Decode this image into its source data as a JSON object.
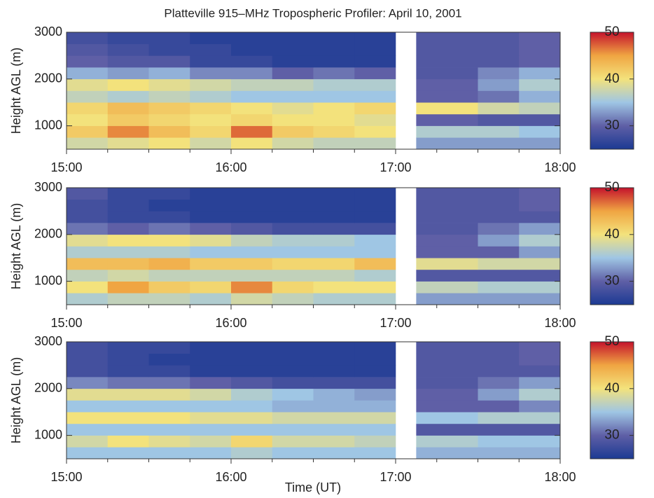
{
  "chart_data": [
    {
      "type": "heatmap",
      "title": "Platteville 915–MHz Tropospheric Profiler:  April 10, 2001",
      "ylabel": "Height AGL (m)",
      "x": [
        15,
        15.25,
        15.5,
        15.75,
        16,
        16.25,
        16.5,
        16.75,
        17,
        17.125,
        17.5,
        17.75,
        18
      ],
      "y": [
        500,
        750,
        1000,
        1250,
        1500,
        1750,
        2000,
        2250,
        2500,
        2750,
        3000
      ],
      "z": [
        [
          38,
          39,
          40,
          38,
          40,
          38,
          37,
          37,
          null,
          33,
          33,
          33
        ],
        [
          42,
          46,
          43,
          41,
          47,
          42,
          41,
          40,
          null,
          36,
          36,
          35
        ],
        [
          40,
          42,
          41,
          40,
          41,
          40,
          40,
          39,
          null,
          30,
          29,
          29
        ],
        [
          41,
          43,
          42,
          41,
          40,
          39,
          40,
          41,
          null,
          40,
          38,
          37
        ],
        [
          37,
          36,
          37,
          36,
          35,
          35,
          35,
          35,
          null,
          30,
          31,
          34
        ],
        [
          39,
          40,
          39,
          38,
          37,
          37,
          36,
          36,
          null,
          30,
          33,
          36
        ],
        [
          34,
          33,
          34,
          32,
          32,
          30,
          31,
          30,
          null,
          29,
          32,
          34
        ],
        [
          30,
          29,
          29,
          27,
          27,
          26,
          26,
          26,
          null,
          29,
          29,
          30
        ],
        [
          29,
          28,
          27,
          27,
          26,
          26,
          26,
          26,
          null,
          29,
          29,
          30
        ],
        [
          28,
          27,
          27,
          26,
          26,
          26,
          26,
          26,
          null,
          29,
          29,
          30
        ]
      ],
      "xlim": [
        15,
        18
      ],
      "ylim": [
        500,
        3000
      ],
      "xticks": [
        {
          "value": 15,
          "label": "15:00"
        },
        {
          "value": 16,
          "label": "16:00"
        },
        {
          "value": 17,
          "label": "17:00"
        },
        {
          "value": 18,
          "label": "18:00"
        }
      ],
      "xminorticks": [
        15.25,
        15.5,
        15.75,
        16.25,
        16.5,
        16.75,
        17.25,
        17.5,
        17.75
      ],
      "yticks": [
        1000,
        2000,
        3000
      ],
      "clim": [
        25,
        50
      ],
      "cticks": [
        30,
        40,
        50
      ],
      "colors": [
        "#1c3a93",
        "#5f5fa6",
        "#9fc6e4",
        "#f3e27c",
        "#f0a542",
        "#c4122c"
      ]
    },
    {
      "type": "heatmap",
      "ylabel": "Height AGL (m)",
      "x": [
        15,
        15.25,
        15.5,
        15.75,
        16,
        16.25,
        16.5,
        16.75,
        17,
        17.125,
        17.5,
        17.75,
        18
      ],
      "y": [
        500,
        750,
        1000,
        1250,
        1500,
        1750,
        2000,
        2250,
        2500,
        2750,
        3000
      ],
      "z": [
        [
          36,
          37,
          37,
          36,
          38,
          37,
          36,
          36,
          null,
          33,
          33,
          33
        ],
        [
          40,
          45,
          42,
          41,
          46,
          41,
          40,
          40,
          null,
          37,
          36,
          36
        ],
        [
          37,
          38,
          37,
          37,
          37,
          37,
          37,
          36,
          null,
          29,
          29,
          29
        ],
        [
          43,
          43,
          44,
          42,
          42,
          41,
          41,
          43,
          null,
          39,
          38,
          38
        ],
        [
          36,
          36,
          36,
          35,
          35,
          35,
          35,
          35,
          null,
          30,
          30,
          33
        ],
        [
          39,
          40,
          40,
          39,
          37,
          36,
          36,
          35,
          null,
          30,
          33,
          36
        ],
        [
          31,
          30,
          31,
          30,
          29,
          28,
          28,
          28,
          null,
          29,
          31,
          33
        ],
        [
          28,
          27,
          27,
          26,
          26,
          26,
          26,
          26,
          null,
          29,
          29,
          29
        ],
        [
          28,
          27,
          26,
          26,
          26,
          26,
          26,
          26,
          null,
          29,
          29,
          30
        ],
        [
          29,
          27,
          27,
          26,
          26,
          26,
          26,
          26,
          null,
          29,
          29,
          30
        ]
      ],
      "xlim": [
        15,
        18
      ],
      "ylim": [
        500,
        3000
      ],
      "xticks": [
        {
          "value": 15,
          "label": "15:00"
        },
        {
          "value": 16,
          "label": "16:00"
        },
        {
          "value": 17,
          "label": "17:00"
        },
        {
          "value": 18,
          "label": "18:00"
        }
      ],
      "xminorticks": [
        15.25,
        15.5,
        15.75,
        16.25,
        16.5,
        16.75,
        17.25,
        17.5,
        17.75
      ],
      "yticks": [
        1000,
        2000,
        3000
      ],
      "clim": [
        25,
        50
      ],
      "cticks": [
        30,
        40,
        50
      ],
      "colors": [
        "#1c3a93",
        "#5f5fa6",
        "#9fc6e4",
        "#f3e27c",
        "#f0a542",
        "#c4122c"
      ]
    },
    {
      "type": "heatmap",
      "ylabel": "Height AGL (m)",
      "xlabel": "Time (UT)",
      "x": [
        15,
        15.25,
        15.5,
        15.75,
        16,
        16.25,
        16.5,
        16.75,
        17,
        17.125,
        17.5,
        17.75,
        18
      ],
      "y": [
        500,
        750,
        1000,
        1250,
        1500,
        1750,
        2000,
        2250,
        2500,
        2750,
        3000
      ],
      "z": [
        [
          35,
          35,
          35,
          35,
          36,
          35,
          35,
          35,
          null,
          34,
          34,
          34
        ],
        [
          38,
          40,
          39,
          38,
          41,
          38,
          38,
          37,
          null,
          36,
          35,
          35
        ],
        [
          35,
          35,
          35,
          35,
          35,
          35,
          35,
          35,
          null,
          29,
          29,
          29
        ],
        [
          40,
          40,
          40,
          39,
          39,
          38,
          38,
          38,
          null,
          35,
          36,
          36
        ],
        [
          35,
          35,
          35,
          35,
          35,
          34,
          34,
          34,
          null,
          30,
          30,
          32
        ],
        [
          39,
          39,
          39,
          38,
          36,
          35,
          34,
          33,
          null,
          30,
          33,
          36
        ],
        [
          32,
          31,
          31,
          30,
          29,
          28,
          28,
          28,
          null,
          29,
          31,
          33
        ],
        [
          28,
          27,
          27,
          26,
          26,
          26,
          26,
          26,
          null,
          29,
          29,
          29
        ],
        [
          28,
          27,
          26,
          26,
          26,
          26,
          26,
          26,
          null,
          29,
          29,
          30
        ],
        [
          28,
          27,
          27,
          26,
          26,
          26,
          26,
          26,
          null,
          29,
          29,
          30
        ]
      ],
      "xlim": [
        15,
        18
      ],
      "ylim": [
        500,
        3000
      ],
      "xticks": [
        {
          "value": 15,
          "label": "15:00"
        },
        {
          "value": 16,
          "label": "16:00"
        },
        {
          "value": 17,
          "label": "17:00"
        },
        {
          "value": 18,
          "label": "18:00"
        }
      ],
      "xminorticks": [
        15.25,
        15.5,
        15.75,
        16.25,
        16.5,
        16.75,
        17.25,
        17.5,
        17.75
      ],
      "yticks": [
        1000,
        2000,
        3000
      ],
      "clim": [
        25,
        50
      ],
      "cticks": [
        30,
        40,
        50
      ],
      "colors": [
        "#1c3a93",
        "#5f5fa6",
        "#9fc6e4",
        "#f3e27c",
        "#f0a542",
        "#c4122c"
      ]
    }
  ]
}
